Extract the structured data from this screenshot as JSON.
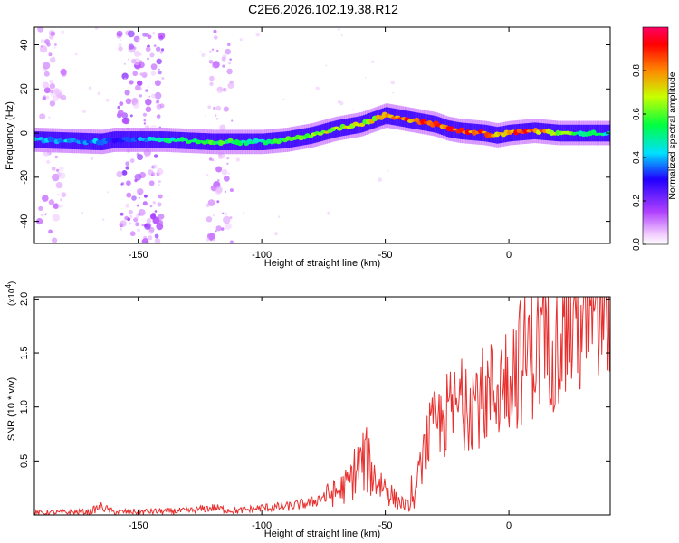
{
  "chart_data": [
    {
      "type": "heatmap",
      "title": "C2E6.2026.102.19.38.R12",
      "xlabel": "Height of straight line (km)",
      "ylabel": "Frequency (Hz)",
      "xlim": [
        -192,
        41
      ],
      "ylim": [
        -50,
        48
      ],
      "xticks": [
        -150,
        -100,
        -50,
        0
      ],
      "yticks": [
        -40,
        -20,
        0,
        20,
        40
      ],
      "colorbar": {
        "label": "Normalized spectral amplitude",
        "range": [
          0,
          1
        ],
        "ticks": [
          "0.0",
          "0.2",
          "0.4",
          "0.6",
          "0.8"
        ],
        "colors": [
          "#ffffff",
          "#ff00ff",
          "#8800ff",
          "#0000ff",
          "#00ffff",
          "#00ff00",
          "#ffff00",
          "#ff8800",
          "#ff0000"
        ]
      },
      "ridge": {
        "x": [
          -192,
          -165,
          -160,
          -140,
          -120,
          -100,
          -90,
          -80,
          -70,
          -60,
          -50,
          -45,
          -40,
          -35,
          -30,
          -25,
          -20,
          -10,
          -5,
          0,
          10,
          20,
          30,
          41
        ],
        "y": [
          -3,
          -4,
          -3,
          -3,
          -4,
          -4,
          -3,
          -1,
          2,
          4,
          8,
          7,
          6,
          5,
          4,
          2,
          1,
          0,
          -1,
          0,
          1,
          0,
          0,
          0
        ],
        "amplitude": [
          0.45,
          0.4,
          0.3,
          0.5,
          0.6,
          0.55,
          0.6,
          0.65,
          0.75,
          0.7,
          0.8,
          0.9,
          0.9,
          0.92,
          0.9,
          0.95,
          0.95,
          0.9,
          0.85,
          0.9,
          0.9,
          0.7,
          0.55,
          0.5
        ]
      },
      "noise_bands_x": [
        [
          -190,
          -180
        ],
        [
          -158,
          -140
        ],
        [
          -122,
          -112
        ]
      ]
    },
    {
      "type": "line",
      "title": "",
      "xlabel": "Height of straight line (km)",
      "ylabel": "SNR (10 * v/v)",
      "scale_label": "(x10",
      "scale_exponent": "4",
      "scale_suffix": ")",
      "xlim": [
        -192,
        41
      ],
      "ylim": [
        0,
        2.02
      ],
      "xticks": [
        -150,
        -100,
        -50,
        0
      ],
      "yticks": [
        "0.5",
        "1.0",
        "1.5",
        "2.0"
      ],
      "series": [
        {
          "name": "SNR",
          "color": "#e8302f",
          "x": [
            -192,
            -170,
            -165,
            -160,
            -130,
            -120,
            -110,
            -100,
            -90,
            -80,
            -75,
            -70,
            -65,
            -62,
            -58,
            -54,
            -50,
            -46,
            -42,
            -39,
            -36,
            -33,
            -30,
            -27,
            -24,
            -20,
            -15,
            -10,
            -5,
            0,
            5,
            10,
            15,
            20,
            25,
            30,
            35,
            41
          ],
          "y": [
            0.02,
            0.03,
            0.08,
            0.03,
            0.04,
            0.07,
            0.04,
            0.07,
            0.08,
            0.12,
            0.18,
            0.22,
            0.3,
            0.45,
            0.55,
            0.35,
            0.28,
            0.15,
            0.1,
            0.08,
            0.45,
            0.72,
            0.85,
            0.9,
            1.0,
            1.05,
            1.12,
            1.15,
            1.22,
            1.38,
            1.5,
            1.62,
            1.72,
            1.8,
            1.86,
            1.92,
            1.96,
            1.98
          ]
        }
      ]
    }
  ]
}
